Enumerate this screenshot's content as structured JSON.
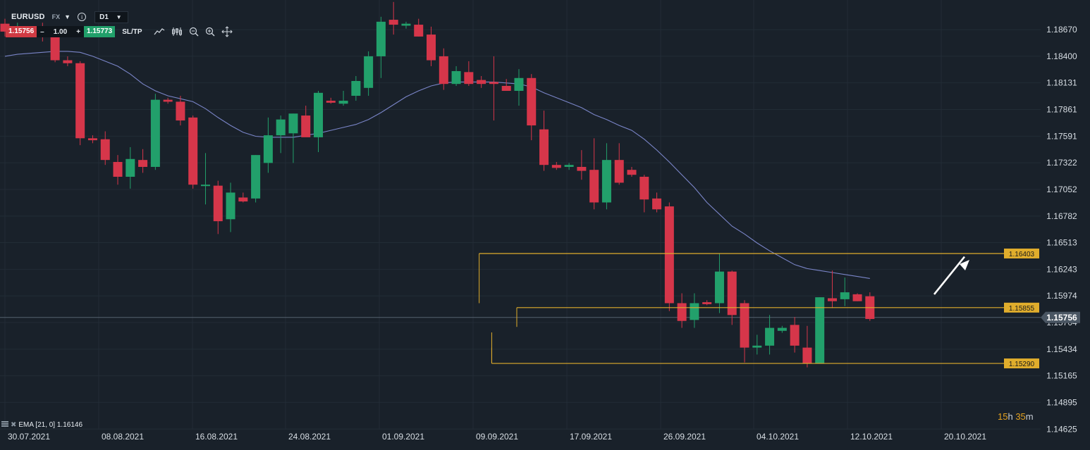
{
  "header": {
    "symbol": "EURUSD",
    "market": "FX",
    "timeframe": "D1"
  },
  "trade_panel": {
    "sell_price": "1.15756",
    "minus": "–",
    "quantity": "1.00",
    "plus": "+",
    "buy_price": "1.15773",
    "sltp_label": "SL/TP"
  },
  "toolbar_icons": [
    "line-chart-icon",
    "candles-icon",
    "zoom-out-icon",
    "zoom-in-icon",
    "crosshair-icon"
  ],
  "indicator": {
    "label": "EMA [21, 0] 1.16146"
  },
  "countdown": {
    "hours": "15",
    "h": "h",
    "minutes": "35",
    "m": "m"
  },
  "colors": {
    "background": "#19212a",
    "bull": "#22a06b",
    "bear": "#d6364a",
    "ema_line": "#7a85c8",
    "level": "#e0ad2c",
    "grid": "#222c36"
  },
  "chart_data": {
    "type": "candlestick",
    "symbol": "EURUSD",
    "timeframe": "D1",
    "ylim": [
      1.1462,
      1.1897
    ],
    "y_ticks": [
      "1.18670",
      "1.18400",
      "1.18131",
      "1.17861",
      "1.17591",
      "1.17322",
      "1.17052",
      "1.16782",
      "1.16513",
      "1.16243",
      "1.15974",
      "1.15704",
      "1.15434",
      "1.15165",
      "1.14895",
      "1.14625"
    ],
    "x_tick_labels": [
      "30.07.2021",
      "08.08.2021",
      "16.08.2021",
      "24.08.2021",
      "01.09.2021",
      "09.09.2021",
      "17.09.2021",
      "26.09.2021",
      "04.10.2021",
      "12.10.2021",
      "20.10.2021"
    ],
    "current_price": "1.15756",
    "levels": [
      {
        "value": 1.16403,
        "label": "1.16403",
        "from_bar": 38
      },
      {
        "value": 1.15855,
        "label": "1.15855",
        "from_bar": 41
      },
      {
        "value": 1.1529,
        "label": "1.15290",
        "from_bar": 39
      }
    ],
    "ohlc": [
      [
        1.1873,
        1.1878,
        1.186,
        1.1865
      ],
      [
        1.1866,
        1.1874,
        1.1862,
        1.1868
      ],
      [
        1.1865,
        1.187,
        1.1862,
        1.1868
      ],
      [
        1.1866,
        1.1874,
        1.1855,
        1.186
      ],
      [
        1.1868,
        1.187,
        1.1834,
        1.1836
      ],
      [
        1.1836,
        1.184,
        1.183,
        1.1833
      ],
      [
        1.1833,
        1.1835,
        1.175,
        1.1757
      ],
      [
        1.1757,
        1.176,
        1.1752,
        1.1755
      ],
      [
        1.1756,
        1.1764,
        1.173,
        1.1735
      ],
      [
        1.1733,
        1.174,
        1.171,
        1.1718
      ],
      [
        1.1718,
        1.1748,
        1.1706,
        1.1736
      ],
      [
        1.1735,
        1.1746,
        1.1722,
        1.1728
      ],
      [
        1.1728,
        1.1802,
        1.1725,
        1.1796
      ],
      [
        1.1796,
        1.1798,
        1.1792,
        1.1794
      ],
      [
        1.1794,
        1.18,
        1.177,
        1.1775
      ],
      [
        1.1778,
        1.178,
        1.1706,
        1.171
      ],
      [
        1.171,
        1.1742,
        1.169,
        1.171
      ],
      [
        1.1709,
        1.1714,
        1.166,
        1.1673
      ],
      [
        1.1675,
        1.1712,
        1.1662,
        1.1702
      ],
      [
        1.1697,
        1.1702,
        1.1692,
        1.1693
      ],
      [
        1.1696,
        1.174,
        1.1692,
        1.174
      ],
      [
        1.1732,
        1.1778,
        1.1722,
        1.176
      ],
      [
        1.176,
        1.178,
        1.1742,
        1.1776
      ],
      [
        1.1762,
        1.1782,
        1.1732,
        1.1782
      ],
      [
        1.178,
        1.179,
        1.176,
        1.1758
      ],
      [
        1.1758,
        1.1805,
        1.1743,
        1.1803
      ],
      [
        1.1795,
        1.1798,
        1.1792,
        1.1793
      ],
      [
        1.1792,
        1.1805,
        1.179,
        1.1795
      ],
      [
        1.18,
        1.182,
        1.1795,
        1.1815
      ],
      [
        1.1808,
        1.1845,
        1.18,
        1.184
      ],
      [
        1.184,
        1.188,
        1.1818,
        1.1875
      ],
      [
        1.1877,
        1.1895,
        1.1862,
        1.1872
      ],
      [
        1.1871,
        1.1875,
        1.1868,
        1.1873
      ],
      [
        1.1872,
        1.1878,
        1.186,
        1.186
      ],
      [
        1.1862,
        1.187,
        1.183,
        1.1836
      ],
      [
        1.184,
        1.1848,
        1.1806,
        1.1812
      ],
      [
        1.1812,
        1.183,
        1.181,
        1.1825
      ],
      [
        1.1824,
        1.1835,
        1.181,
        1.1812
      ],
      [
        1.1816,
        1.182,
        1.1808,
        1.1812
      ],
      [
        1.1814,
        1.184,
        1.1775,
        1.1812
      ],
      [
        1.181,
        1.1817,
        1.1805,
        1.1805
      ],
      [
        1.1805,
        1.1827,
        1.179,
        1.1818
      ],
      [
        1.1818,
        1.1822,
        1.1755,
        1.177
      ],
      [
        1.1766,
        1.1785,
        1.1724,
        1.173
      ],
      [
        1.173,
        1.1733,
        1.1725,
        1.1727
      ],
      [
        1.1728,
        1.1732,
        1.1725,
        1.173
      ],
      [
        1.1728,
        1.1745,
        1.1715,
        1.1724
      ],
      [
        1.1725,
        1.1757,
        1.1685,
        1.1692
      ],
      [
        1.1692,
        1.1752,
        1.1685,
        1.1735
      ],
      [
        1.1735,
        1.1752,
        1.171,
        1.1712
      ],
      [
        1.1725,
        1.1728,
        1.1718,
        1.172
      ],
      [
        1.1718,
        1.172,
        1.1682,
        1.1695
      ],
      [
        1.1696,
        1.1702,
        1.1682,
        1.1685
      ],
      [
        1.1688,
        1.1692,
        1.1582,
        1.159
      ],
      [
        1.159,
        1.16,
        1.1565,
        1.1572
      ],
      [
        1.1573,
        1.16,
        1.1565,
        1.159
      ],
      [
        1.1591,
        1.1593,
        1.1588,
        1.1589
      ],
      [
        1.159,
        1.164,
        1.158,
        1.1622
      ],
      [
        1.1622,
        1.1623,
        1.1568,
        1.1578
      ],
      [
        1.159,
        1.1593,
        1.153,
        1.1545
      ],
      [
        1.1545,
        1.1558,
        1.1538,
        1.1547
      ],
      [
        1.1547,
        1.1578,
        1.1538,
        1.1565
      ],
      [
        1.1562,
        1.1567,
        1.156,
        1.1565
      ],
      [
        1.1568,
        1.1576,
        1.154,
        1.1547
      ],
      [
        1.1545,
        1.1567,
        1.1525,
        1.1529
      ],
      [
        1.1529,
        1.1596,
        1.1529,
        1.1596
      ],
      [
        1.1595,
        1.1623,
        1.1585,
        1.1592
      ],
      [
        1.1594,
        1.1616,
        1.1587,
        1.1601
      ],
      [
        1.1599,
        1.16,
        1.1592,
        1.1592
      ],
      [
        1.1597,
        1.1601,
        1.1572,
        1.1574
      ]
    ],
    "ema21": [
      1.184,
      1.1842,
      1.1843,
      1.1844,
      1.1845,
      1.1845,
      1.1844,
      1.184,
      1.1835,
      1.183,
      1.1822,
      1.1812,
      1.1805,
      1.18,
      1.1797,
      1.1794,
      1.1787,
      1.1778,
      1.177,
      1.1763,
      1.1759,
      1.1758,
      1.1758,
      1.1758,
      1.176,
      1.1762,
      1.1765,
      1.1768,
      1.1771,
      1.1776,
      1.1783,
      1.1791,
      1.1799,
      1.1805,
      1.181,
      1.1813,
      1.1814,
      1.1814,
      1.1814,
      1.1814,
      1.1813,
      1.1812,
      1.1809,
      1.1803,
      1.1798,
      1.1793,
      1.1788,
      1.1781,
      1.1776,
      1.177,
      1.1765,
      1.1756,
      1.1745,
      1.1733,
      1.172,
      1.1707,
      1.1692,
      1.168,
      1.1668,
      1.166,
      1.1651,
      1.1643,
      1.1636,
      1.1629,
      1.1625,
      1.1623,
      1.1621,
      1.1619,
      1.1617,
      1.1615
    ]
  }
}
